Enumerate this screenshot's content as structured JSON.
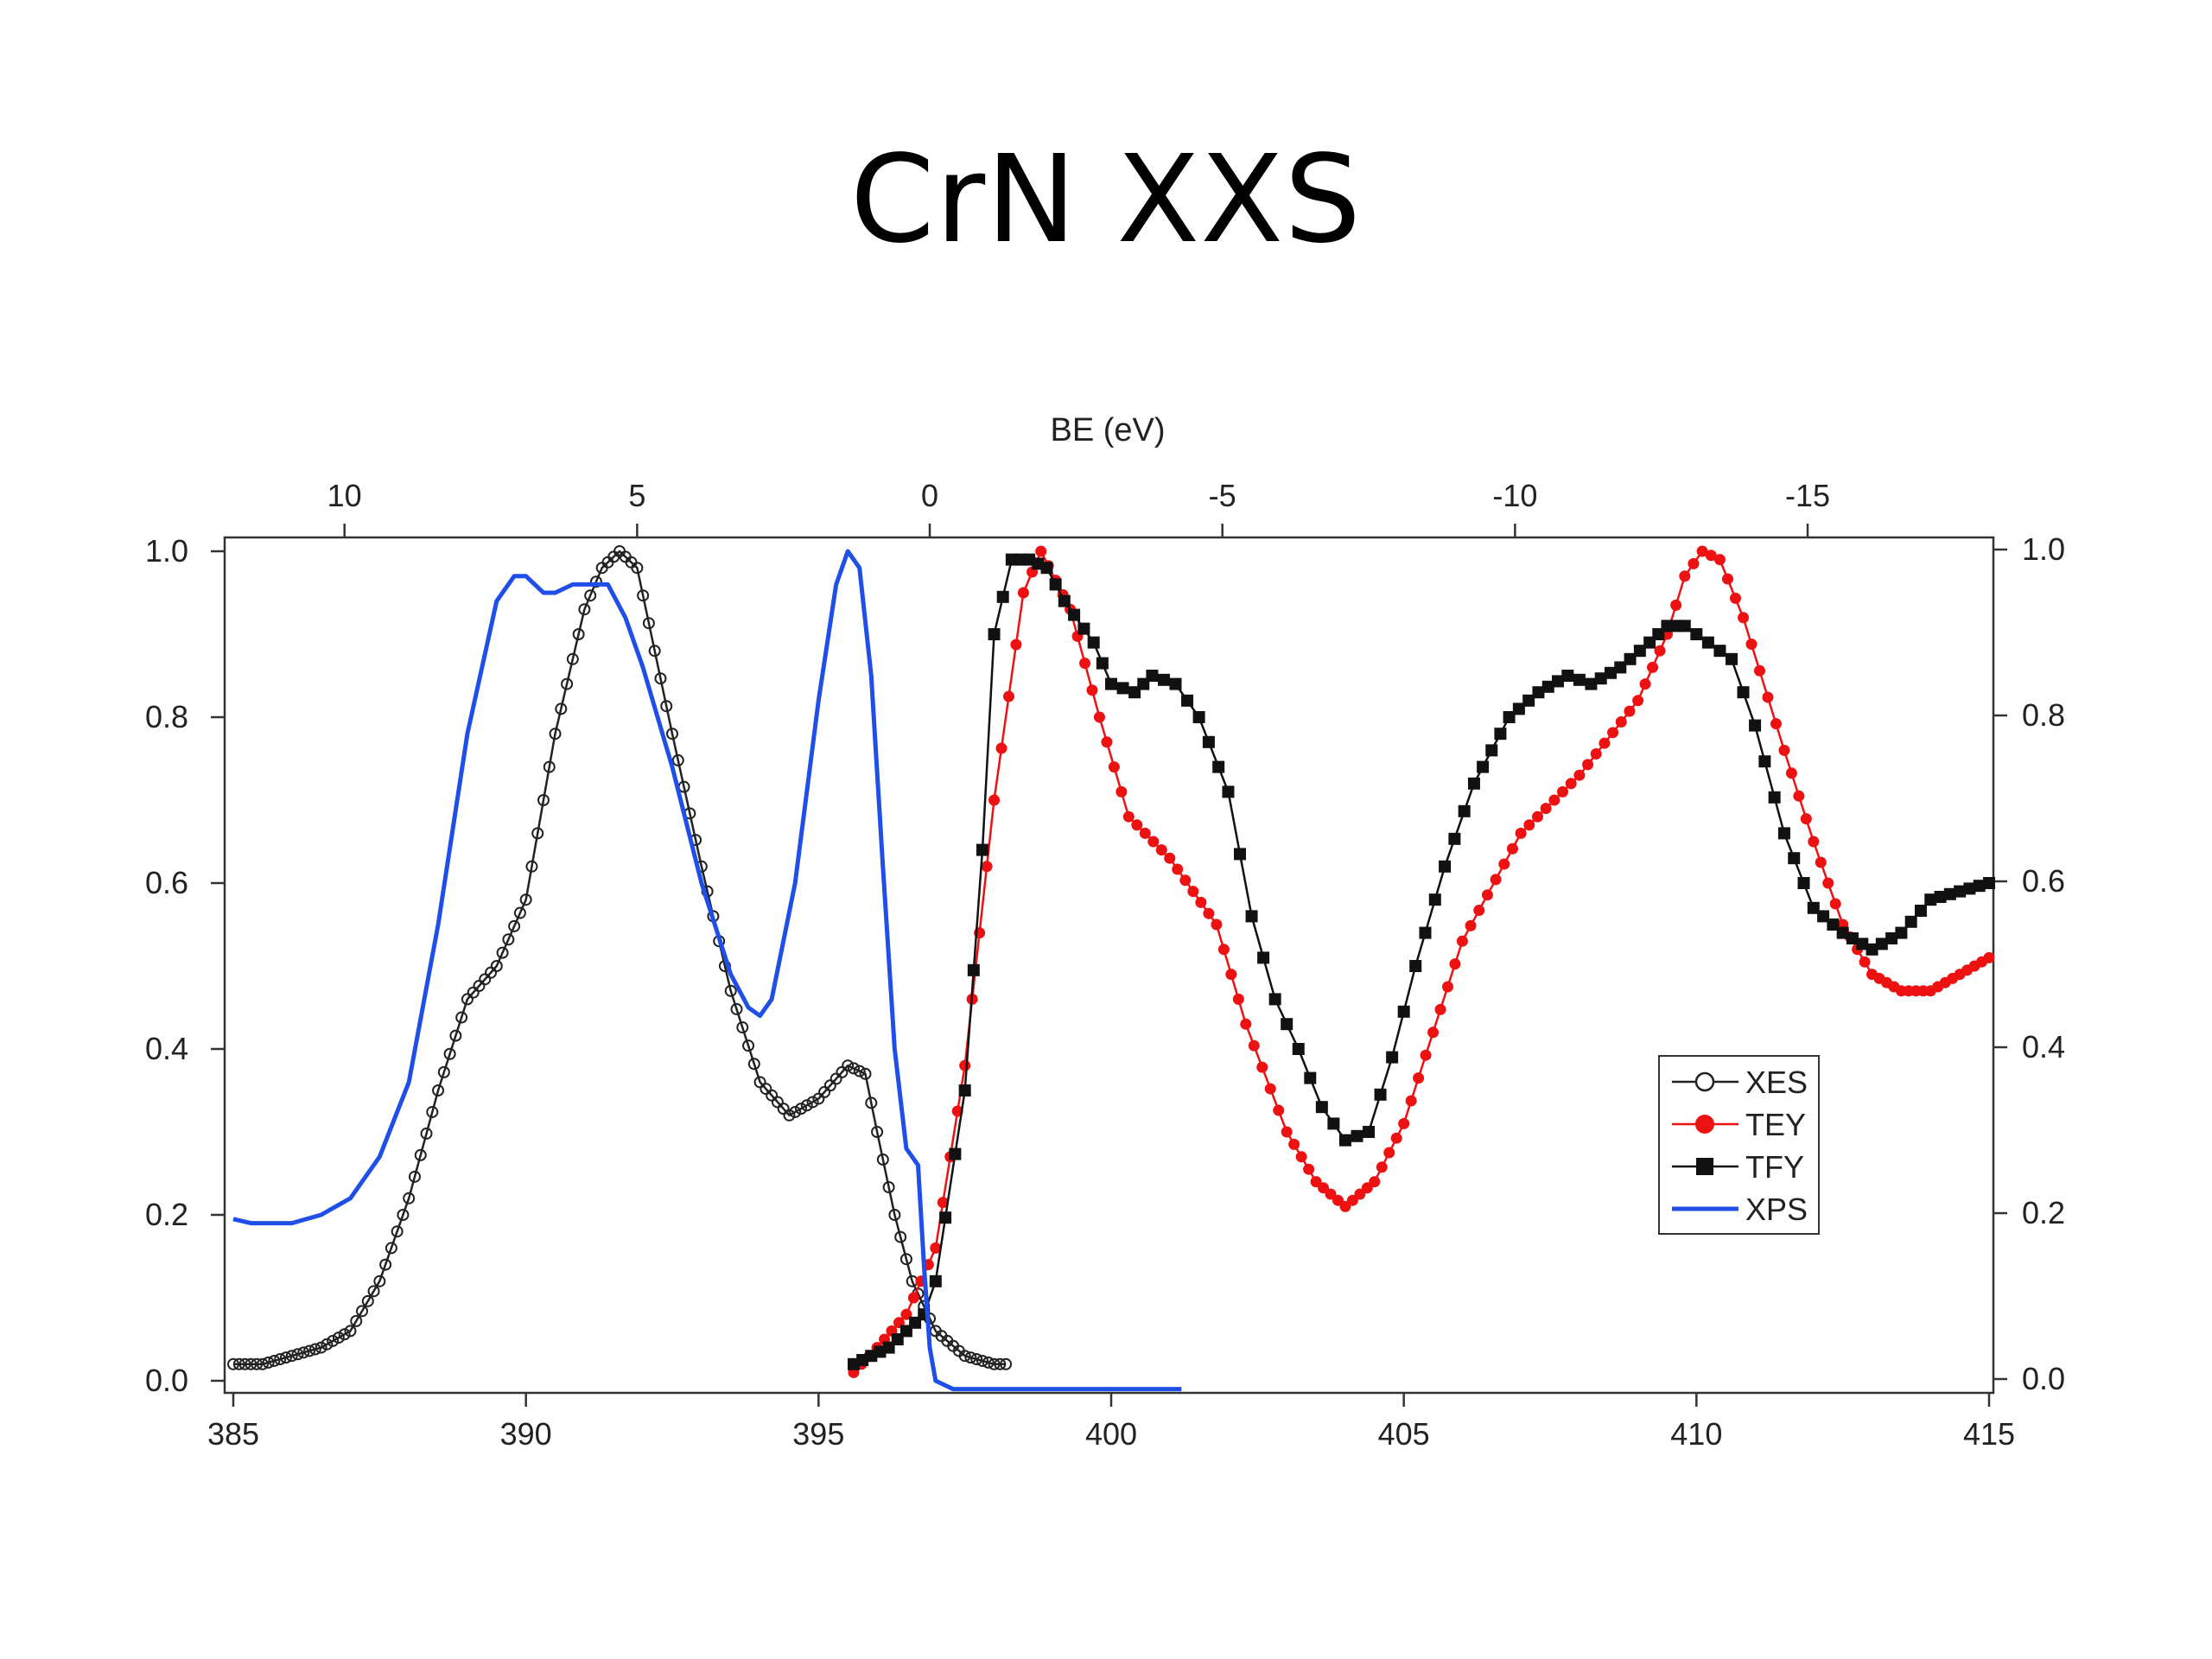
{
  "title": "CrN XXS",
  "chart_data": {
    "type": "line",
    "title": "CrN XXS",
    "xlabel": "",
    "top_axis_label": "BE (eV)",
    "ylabel": "",
    "xlim": [
      385,
      415
    ],
    "ylim": [
      0.0,
      1.0
    ],
    "x_ticks": [
      385,
      390,
      395,
      400,
      405,
      410,
      415
    ],
    "top_axis": {
      "label": "BE (eV)",
      "ticks": [
        10,
        5,
        0,
        -5,
        -10,
        -15
      ],
      "reference_energy": 396.9
    },
    "left_ticks": [
      "0.0",
      "0.2",
      "0.4",
      "0.6",
      "0.8",
      "1.0"
    ],
    "right_ticks": [
      "0.0",
      "0.2",
      "0.4",
      "0.6",
      "0.8",
      "1.0"
    ],
    "legend_position": "lower-right",
    "series": [
      {
        "name": "XES",
        "color": "#222222",
        "marker": "open-circle",
        "x": [
          385.0,
          385.5,
          386.0,
          386.5,
          387.0,
          387.5,
          388.0,
          388.5,
          389.0,
          389.5,
          390.0,
          390.5,
          391.0,
          391.3,
          391.6,
          391.9,
          392.2,
          392.5,
          393.0,
          393.5,
          394.0,
          394.5,
          395.0,
          395.5,
          395.8,
          396.0,
          396.3,
          396.6,
          397.0,
          397.5,
          398.0,
          398.2
        ],
        "y": [
          0.02,
          0.02,
          0.03,
          0.04,
          0.06,
          0.12,
          0.22,
          0.35,
          0.46,
          0.5,
          0.58,
          0.78,
          0.93,
          0.98,
          1.0,
          0.98,
          0.88,
          0.78,
          0.62,
          0.47,
          0.36,
          0.32,
          0.34,
          0.38,
          0.37,
          0.3,
          0.2,
          0.12,
          0.06,
          0.03,
          0.02,
          0.02
        ]
      },
      {
        "name": "TEY",
        "color": "#ee1111",
        "marker": "filled-circle",
        "x": [
          395.6,
          396.0,
          396.5,
          397.0,
          397.5,
          398.0,
          398.5,
          398.8,
          399.3,
          399.8,
          400.3,
          401.0,
          401.8,
          402.3,
          403.0,
          403.5,
          404.0,
          404.5,
          405.0,
          405.5,
          406.0,
          407.0,
          408.0,
          409.0,
          409.5,
          409.8,
          410.1,
          410.4,
          410.8,
          411.5,
          412.0,
          412.5,
          413.0,
          413.5,
          414.0,
          414.5,
          415.0
        ],
        "y": [
          0.01,
          0.04,
          0.08,
          0.16,
          0.38,
          0.7,
          0.95,
          1.0,
          0.93,
          0.8,
          0.68,
          0.63,
          0.55,
          0.43,
          0.3,
          0.24,
          0.21,
          0.24,
          0.31,
          0.42,
          0.53,
          0.66,
          0.73,
          0.82,
          0.9,
          0.97,
          1.0,
          0.99,
          0.92,
          0.76,
          0.65,
          0.55,
          0.49,
          0.47,
          0.47,
          0.49,
          0.51
        ]
      },
      {
        "name": "TFY",
        "color": "#111111",
        "marker": "filled-square",
        "x": [
          395.6,
          396.2,
          396.5,
          396.8,
          397.0,
          397.5,
          397.8,
          398.0,
          398.3,
          398.6,
          398.9,
          399.2,
          399.7,
          400.0,
          400.4,
          400.7,
          401.1,
          401.5,
          402.0,
          402.4,
          402.8,
          403.2,
          403.6,
          404.0,
          404.4,
          404.8,
          405.2,
          405.7,
          406.2,
          406.8,
          407.3,
          407.8,
          408.2,
          408.7,
          409.2,
          409.5,
          409.8,
          410.2,
          410.6,
          411.0,
          411.5,
          412.0,
          412.5,
          413.0,
          413.5,
          414.0,
          414.5,
          415.0
        ],
        "y": [
          0.02,
          0.04,
          0.06,
          0.08,
          0.12,
          0.35,
          0.64,
          0.9,
          0.99,
          0.99,
          0.98,
          0.94,
          0.89,
          0.84,
          0.83,
          0.85,
          0.84,
          0.8,
          0.71,
          0.56,
          0.46,
          0.4,
          0.33,
          0.29,
          0.3,
          0.39,
          0.5,
          0.62,
          0.72,
          0.8,
          0.83,
          0.85,
          0.84,
          0.86,
          0.89,
          0.91,
          0.91,
          0.89,
          0.87,
          0.79,
          0.66,
          0.57,
          0.54,
          0.52,
          0.54,
          0.58,
          0.59,
          0.6
        ]
      },
      {
        "name": "XPS",
        "color": "#1f4fe8",
        "marker": "none",
        "x": [
          385.0,
          385.3,
          385.6,
          386.0,
          386.5,
          387.0,
          387.5,
          388.0,
          388.5,
          389.0,
          389.5,
          389.8,
          390.0,
          390.3,
          390.5,
          390.8,
          391.1,
          391.4,
          391.7,
          392.0,
          392.5,
          393.0,
          393.5,
          393.8,
          394.0,
          394.2,
          394.6,
          395.0,
          395.3,
          395.5,
          395.7,
          395.9,
          396.1,
          396.3,
          396.5,
          396.7,
          396.8,
          396.9,
          397.0,
          397.3,
          398.0,
          399.0,
          400.0,
          401.2
        ],
        "y": [
          0.195,
          0.19,
          0.19,
          0.19,
          0.2,
          0.22,
          0.27,
          0.36,
          0.55,
          0.78,
          0.94,
          0.97,
          0.97,
          0.95,
          0.95,
          0.96,
          0.96,
          0.96,
          0.92,
          0.86,
          0.74,
          0.6,
          0.49,
          0.45,
          0.44,
          0.46,
          0.6,
          0.82,
          0.96,
          1.0,
          0.98,
          0.85,
          0.62,
          0.4,
          0.28,
          0.26,
          0.14,
          0.04,
          0.0,
          -0.01,
          -0.01,
          -0.01,
          -0.01,
          -0.01
        ]
      }
    ]
  }
}
